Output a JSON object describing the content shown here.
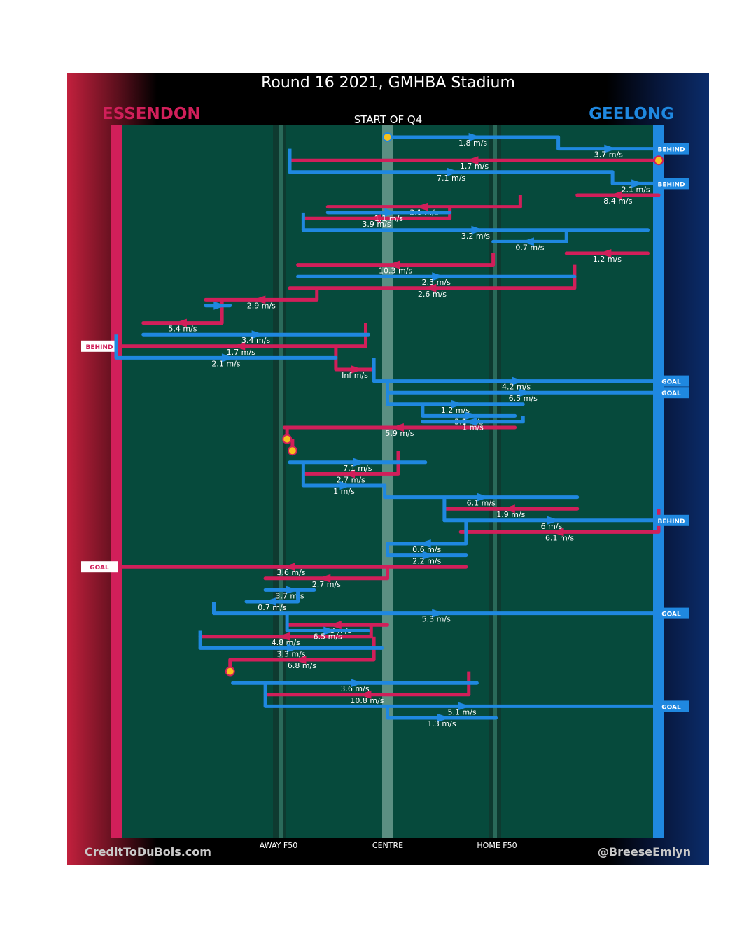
{
  "title": "Round 16 2021, GMHBA Stadium",
  "team_left": "ESSENDON",
  "team_right": "GEELONG",
  "quarter_label": "START OF Q4",
  "axis_labels": {
    "away": "AWAY F50",
    "centre": "CENTRE",
    "home": "HOME F50"
  },
  "credits": {
    "left": "CreditToDuBois.com",
    "right": "@BreeseEmlyn"
  },
  "colors": {
    "essendon": "#d11f5a",
    "geelong": "#1f88e0",
    "ball": "#f6c21c",
    "pitch": "#064a3c"
  },
  "chart_data": {
    "type": "line",
    "title": "Round 16 2021, GMHBA Stadium",
    "subtitle": "START OF Q4",
    "x_axis_note": "pitch position from Essendon goal line (-100) to Geelong goal line (100)",
    "xlim": [
      -100,
      100
    ],
    "y_axis_note": "possession sequence index, top to bottom",
    "ylim": [
      0,
      60
    ],
    "series": [
      {
        "name": "ESSENDON",
        "points": [
          {
            "seq": 3,
            "from": 100,
            "to": -36,
            "speed": "1.7 m/s",
            "turn": 2.5
          },
          {
            "seq": 6,
            "from": 100,
            "to": 70,
            "speed": "8.4 m/s",
            "turn": 5.0
          },
          {
            "seq": 7,
            "from": 49,
            "to": -22,
            "speed": "3.1 m/s",
            "turn": 6.0
          },
          {
            "seq": 8,
            "from": 23,
            "to": -31,
            "speed": "3.9 m/s",
            "turn": 8.0
          },
          {
            "seq": 11,
            "from": 96,
            "to": 66,
            "speed": "1.2 m/s",
            "turn": 10.0
          },
          {
            "seq": 12,
            "from": 39,
            "to": -33,
            "speed": "10.3 m/s",
            "turn": 12.0
          },
          {
            "seq": 14,
            "from": 69,
            "to": -36,
            "speed": "2.6 m/s",
            "turn": 14.5
          },
          {
            "seq": 15,
            "from": -26,
            "to": -67,
            "speed": "2.9 m/s",
            "turn": 16.0
          },
          {
            "seq": 17,
            "from": -61,
            "to": -90,
            "speed": "5.4 m/s",
            "turn": 19.0
          },
          {
            "seq": 19,
            "from": -8,
            "to": -100,
            "speed": "1.7 m/s",
            "turn": 20.5,
            "outcome": "BEHIND"
          },
          {
            "seq": 21,
            "from": -19,
            "to": -5,
            "speed": "Inf m/s",
            "turn": 22.0
          },
          {
            "seq": 26,
            "from": 47,
            "to": -38,
            "speed": "5.9 m/s",
            "turn": 28.5
          },
          {
            "seq": 27,
            "from": -37,
            "to": -37,
            "speed": "",
            "turn": 30.5
          },
          {
            "seq": 28,
            "from": -35,
            "to": -35,
            "speed": "",
            "turn": 31.5
          },
          {
            "seq": 30,
            "from": 4,
            "to": -31,
            "speed": "2.7 m/s",
            "turn": 35.5
          },
          {
            "seq": 33,
            "from": 70,
            "to": 21,
            "speed": "1.9 m/s",
            "turn": 38.0
          },
          {
            "seq": 35,
            "from": 100,
            "to": 27,
            "speed": "6.1 m/s",
            "turn": 40.0
          },
          {
            "seq": 38,
            "from": 29,
            "to": -100,
            "speed": "3.6 m/s",
            "turn": 43.0,
            "outcome": "GOAL"
          },
          {
            "seq": 39,
            "from": 0,
            "to": -45,
            "speed": "2.7 m/s",
            "turn": 44.0
          },
          {
            "seq": 43,
            "from": 0,
            "to": -37,
            "speed": "1.3 m/s",
            "turn": 50.0
          },
          {
            "seq": 44,
            "from": -6,
            "to": -69,
            "speed": "4.8 m/s",
            "turn": 51.5
          },
          {
            "seq": 46,
            "from": -5,
            "to": -58,
            "speed": "6.8 m/s",
            "turn": 54.0
          },
          {
            "seq": 47,
            "from": -58,
            "to": -58,
            "speed": "",
            "turn": 55.5
          },
          {
            "seq": 49,
            "from": 30,
            "to": -45,
            "speed": "10.8 m/s",
            "turn": 58.5
          }
        ]
      },
      {
        "name": "GEELONG",
        "points": [
          {
            "seq": 1,
            "from": 0,
            "to": 63,
            "speed": "1.8 m/s",
            "turn": 1.0
          },
          {
            "seq": 2,
            "from": 63,
            "to": 100,
            "speed": "3.7 m/s",
            "turn": 1.5,
            "outcome": "BEHIND"
          },
          {
            "seq": 4,
            "from": -36,
            "to": 83,
            "speed": "7.1 m/s",
            "turn": 4.5
          },
          {
            "seq": 5,
            "from": 83,
            "to": 100,
            "speed": "2.1 m/s",
            "turn": 5.0,
            "outcome": "BEHIND"
          },
          {
            "seq": 7.5,
            "from": -22,
            "to": 23,
            "speed": "1.1 m/s",
            "turn": 7.0
          },
          {
            "seq": 9,
            "from": -31,
            "to": 96,
            "speed": "3.2 m/s",
            "turn": 9.0
          },
          {
            "seq": 10,
            "from": 66,
            "to": 39,
            "speed": "0.7 m/s",
            "turn": 11.0
          },
          {
            "seq": 13,
            "from": -33,
            "to": 69,
            "speed": "2.3 m/s",
            "turn": 13.0
          },
          {
            "seq": 15.5,
            "from": -67,
            "to": -58,
            "speed": "",
            "turn": 17.0
          },
          {
            "seq": 18,
            "from": -90,
            "to": -7,
            "speed": "3.4 m/s",
            "turn": 20.0
          },
          {
            "seq": 20,
            "from": -100,
            "to": -19,
            "speed": "2.1 m/s",
            "turn": 21.0
          },
          {
            "seq": 22,
            "from": -5,
            "to": 100,
            "speed": "4.2 m/s",
            "turn": 23.5,
            "outcome": "GOAL"
          },
          {
            "seq": 23,
            "from": 0,
            "to": 100,
            "speed": "6.5 m/s",
            "turn": 24.5,
            "outcome": "GOAL"
          },
          {
            "seq": 24,
            "from": 0,
            "to": 50,
            "speed": "1.2 m/s",
            "turn": 25.5
          },
          {
            "seq": 25,
            "from": 13,
            "to": 47,
            "speed": "3.1 m/s",
            "turn": 27.0
          },
          {
            "seq": 25.5,
            "from": 50,
            "to": 13,
            "speed": "1 m/s",
            "turn": 26.5
          },
          {
            "seq": 29,
            "from": -36,
            "to": 14,
            "speed": "7.1 m/s",
            "turn": 33.0
          },
          {
            "seq": 31,
            "from": -31,
            "to": -1,
            "speed": "1 m/s",
            "turn": 36.5
          },
          {
            "seq": 32,
            "from": -1,
            "to": 70,
            "speed": "6.1 m/s",
            "turn": 37.0
          },
          {
            "seq": 34,
            "from": 21,
            "to": 100,
            "speed": "6 m/s",
            "turn": 39.0,
            "outcome": "BEHIND"
          },
          {
            "seq": 36,
            "from": 29,
            "to": 0,
            "speed": "0.6 m/s",
            "turn": 41.0
          },
          {
            "seq": 37,
            "from": 0,
            "to": 29,
            "speed": "2.2 m/s",
            "turn": 42.0
          },
          {
            "seq": 40,
            "from": -45,
            "to": -27,
            "speed": "3.7 m/s",
            "turn": 45.0
          },
          {
            "seq": 41,
            "from": -33,
            "to": -52,
            "speed": "0.7 m/s",
            "turn": 47.0
          },
          {
            "seq": 42,
            "from": -64,
            "to": 100,
            "speed": "5.3 m/s",
            "turn": 49.0,
            "outcome": "GOAL"
          },
          {
            "seq": 43.5,
            "from": -37,
            "to": -7,
            "speed": "6.5 m/s",
            "turn": 51.0
          },
          {
            "seq": 45,
            "from": -69,
            "to": -2,
            "speed": "3.3 m/s",
            "turn": 53.0
          },
          {
            "seq": 48,
            "from": -57,
            "to": 33,
            "speed": "3.6 m/s",
            "turn": 57.0
          },
          {
            "seq": 50,
            "from": -45,
            "to": 100,
            "speed": "5.1 m/s",
            "turn": 59.0,
            "outcome": "GOAL"
          },
          {
            "seq": 51,
            "from": 0,
            "to": 40,
            "speed": "1.3 m/s",
            "turn": 59.5
          }
        ]
      }
    ]
  }
}
